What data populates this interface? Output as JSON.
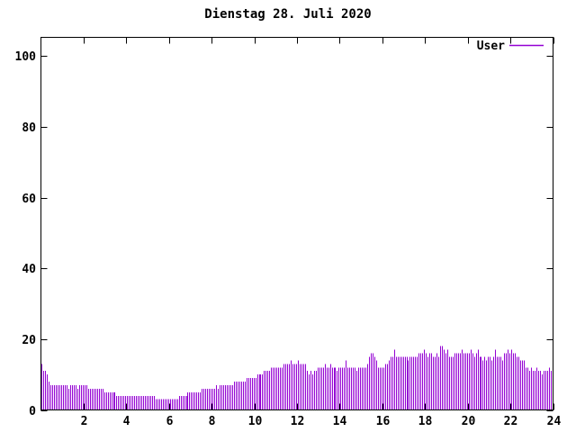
{
  "title": "Dienstag 28. Juli 2020",
  "legend": {
    "label": "User"
  },
  "colors": {
    "bar": "#9400d3",
    "axis": "#000000",
    "text": "#000000",
    "background": "#ffffff"
  },
  "axes": {
    "x": {
      "tick_labels": [
        "2",
        "4",
        "6",
        "8",
        "10",
        "12",
        "14",
        "16",
        "18",
        "20",
        "22",
        "24"
      ],
      "tick_hours": [
        2,
        4,
        6,
        8,
        10,
        12,
        14,
        16,
        18,
        20,
        22,
        24
      ],
      "range_hours": [
        0,
        24
      ]
    },
    "y": {
      "tick_labels": [
        "0",
        "20",
        "40",
        "60",
        "80",
        "100"
      ],
      "tick_values": [
        0,
        20,
        40,
        60,
        80,
        100
      ],
      "range": [
        0,
        105
      ]
    }
  },
  "chart_data": {
    "type": "bar",
    "title": "Dienstag 28. Juli 2020",
    "series_name": "User",
    "x_unit": "hour of day",
    "interval_minutes": 5,
    "x_range": [
      0,
      24
    ],
    "ylim": [
      0,
      105
    ],
    "grid": false,
    "legend_position": "top-right",
    "bar_color": "#9400d3",
    "values": [
      13,
      11,
      11,
      10,
      8,
      7,
      7,
      7,
      7,
      7,
      7,
      7,
      7,
      7,
      7,
      6,
      7,
      7,
      7,
      7,
      6,
      7,
      7,
      7,
      7,
      7,
      6,
      6,
      6,
      6,
      6,
      6,
      6,
      6,
      6,
      5,
      5,
      5,
      5,
      5,
      5,
      5,
      4,
      4,
      4,
      4,
      4,
      4,
      4,
      4,
      4,
      4,
      4,
      4,
      4,
      4,
      4,
      4,
      4,
      4,
      4,
      4,
      4,
      4,
      3,
      3,
      3,
      3,
      3,
      3,
      3,
      3,
      3,
      3,
      3,
      3,
      3,
      4,
      4,
      4,
      4,
      4,
      5,
      5,
      5,
      5,
      5,
      5,
      5,
      5,
      6,
      6,
      6,
      6,
      6,
      6,
      6,
      6,
      7,
      6,
      7,
      7,
      7,
      7,
      7,
      7,
      7,
      7,
      8,
      8,
      8,
      8,
      8,
      8,
      8,
      9,
      9,
      9,
      9,
      9,
      9,
      10,
      10,
      10,
      10,
      11,
      11,
      11,
      11,
      12,
      12,
      12,
      12,
      12,
      12,
      12,
      13,
      13,
      13,
      13,
      14,
      13,
      13,
      13,
      14,
      13,
      13,
      13,
      13,
      11,
      10,
      11,
      10,
      11,
      11,
      12,
      12,
      12,
      12,
      13,
      12,
      12,
      13,
      12,
      12,
      12,
      11,
      12,
      12,
      12,
      12,
      14,
      12,
      12,
      12,
      12,
      12,
      11,
      12,
      12,
      12,
      12,
      12,
      13,
      15,
      16,
      16,
      15,
      14,
      12,
      12,
      12,
      12,
      13,
      13,
      14,
      15,
      15,
      17,
      15,
      15,
      15,
      15,
      15,
      15,
      15,
      14,
      15,
      15,
      15,
      15,
      15,
      16,
      16,
      16,
      17,
      16,
      15,
      16,
      16,
      15,
      15,
      16,
      15,
      18,
      18,
      17,
      16,
      17,
      15,
      15,
      15,
      16,
      16,
      16,
      16,
      17,
      16,
      16,
      16,
      16,
      17,
      16,
      15,
      16,
      17,
      15,
      15,
      14,
      15,
      14,
      15,
      15,
      14,
      15,
      17,
      15,
      15,
      15,
      14,
      16,
      16,
      17,
      16,
      17,
      16,
      16,
      15,
      15,
      14,
      14,
      14,
      12,
      12,
      11,
      12,
      11,
      11,
      12,
      11,
      11,
      10,
      11,
      11,
      11,
      12,
      11,
      13
    ]
  }
}
